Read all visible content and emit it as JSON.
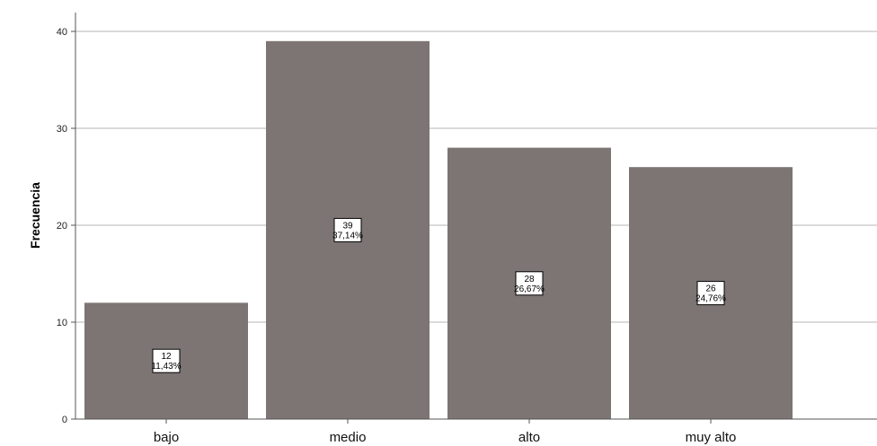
{
  "chart_data": {
    "type": "bar",
    "title": "",
    "xlabel": "",
    "ylabel": "Frecuencia",
    "categories": [
      "bajo",
      "medio",
      "alto",
      "muy alto"
    ],
    "values": [
      12,
      39,
      28,
      26
    ],
    "data_labels": [
      {
        "count": "12",
        "percent": "11,43%"
      },
      {
        "count": "39",
        "percent": "37,14%"
      },
      {
        "count": "28",
        "percent": "26,67%"
      },
      {
        "count": "26",
        "percent": "24,76%"
      }
    ],
    "yticks": [
      "0",
      "10",
      "20",
      "30",
      "40"
    ],
    "ylim": [
      0,
      40
    ],
    "grid": true,
    "legend": "none",
    "colors": {
      "bar": "#7d7573",
      "gridline": "#b5b5b5",
      "axis": "#555555",
      "background": "#ffffff"
    }
  }
}
